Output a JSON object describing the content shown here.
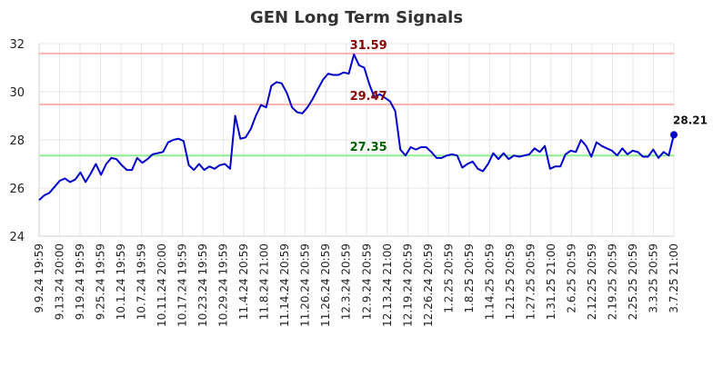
{
  "chart_data": {
    "type": "line",
    "title": "GEN Long Term Signals",
    "xlabel": "",
    "ylabel": "",
    "ylim": [
      24,
      32
    ],
    "yticks": [
      24,
      26,
      28,
      30,
      32
    ],
    "grid": true,
    "colors": {
      "line": "#0000cc",
      "upper_line": "#ffb3b3",
      "upper_text": "#8b0000",
      "lower_line": "#90ee90",
      "lower_text": "#006400",
      "grid": "#e6e6e6",
      "title": "#333333"
    },
    "x_tick_labels": [
      "9.9.24 19:59",
      "9.13.24 20:00",
      "9.19.24 19:59",
      "9.25.24 19:59",
      "10.1.24 19:59",
      "10.7.24 19:59",
      "10.11.24 20:00",
      "10.17.24 19:59",
      "10.23.24 19:59",
      "10.29.24 19:59",
      "11.4.24 20:59",
      "11.8.24 21:00",
      "11.14.24 20:59",
      "11.20.24 20:59",
      "11.26.24 20:59",
      "12.3.24 20:59",
      "12.9.24 20:59",
      "12.13.24 21:00",
      "12.19.24 20:59",
      "12.26.24 20:59",
      "1.2.25 20:59",
      "1.8.25 20:59",
      "1.14.25 20:59",
      "1.21.25 20:59",
      "1.27.25 20:59",
      "1.31.25 21:00",
      "2.6.25 20:59",
      "2.12.25 20:59",
      "2.19.25 20:59",
      "2.25.25 20:59",
      "3.3.25 20:59",
      "3.7.25 21:00"
    ],
    "hlines": [
      {
        "value": 31.59,
        "label": "31.59",
        "kind": "upper"
      },
      {
        "value": 29.47,
        "label": "29.47",
        "kind": "upper"
      },
      {
        "value": 27.35,
        "label": "27.35",
        "kind": "lower"
      }
    ],
    "last_value_label": "28.21",
    "series": [
      {
        "values": [
          25.5,
          25.7,
          25.8,
          26.05,
          26.3,
          26.4,
          26.25,
          26.35,
          26.65,
          26.25,
          26.6,
          27.0,
          26.55,
          27.0,
          27.25,
          27.2,
          26.95,
          26.75,
          26.75,
          27.25,
          27.05,
          27.2,
          27.4,
          27.45,
          27.5,
          27.9,
          28.0,
          28.05,
          27.95,
          26.95,
          26.75,
          27.0,
          26.75,
          26.9,
          26.8,
          26.95,
          27.0,
          26.8,
          29.0,
          28.05,
          28.1,
          28.45,
          29.0,
          29.45,
          29.35,
          30.25,
          30.4,
          30.35,
          29.95,
          29.35,
          29.15,
          29.1,
          29.35,
          29.7,
          30.1,
          30.5,
          30.75,
          30.7,
          30.7,
          30.8,
          30.75,
          31.55,
          31.1,
          31.0,
          30.3,
          29.75,
          29.9,
          29.75,
          29.6,
          29.2,
          27.6,
          27.35,
          27.7,
          27.6,
          27.7,
          27.7,
          27.5,
          27.25,
          27.25,
          27.35,
          27.4,
          27.35,
          26.85,
          27.0,
          27.1,
          26.8,
          26.7,
          27.0,
          27.45,
          27.2,
          27.45,
          27.2,
          27.35,
          27.3,
          27.35,
          27.4,
          27.65,
          27.5,
          27.75,
          26.8,
          26.9,
          26.9,
          27.4,
          27.55,
          27.5,
          28.0,
          27.75,
          27.3,
          27.9,
          27.75,
          27.65,
          27.55,
          27.35,
          27.65,
          27.4,
          27.55,
          27.5,
          27.3,
          27.3,
          27.6,
          27.25,
          27.5,
          27.35,
          28.21
        ]
      }
    ]
  }
}
